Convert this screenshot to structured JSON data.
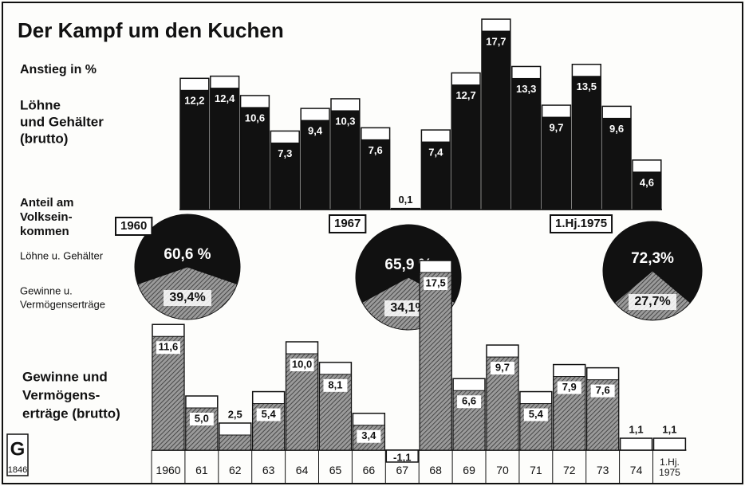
{
  "chart_data": [
    {
      "type": "bar",
      "title": "Der Kampf um den Kuchen",
      "subtitle": "Anstieg in %",
      "label_lines": [
        "Löhne",
        "und Gehälter",
        "(brutto)"
      ],
      "values": [
        12.2,
        12.4,
        10.6,
        7.3,
        9.4,
        10.3,
        7.6,
        0.1,
        7.4,
        12.7,
        17.7,
        13.3,
        9.7,
        13.5,
        9.6,
        4.6
      ],
      "value_labels": [
        "12,2",
        "12,4",
        "10,6",
        "7,3",
        "9,4",
        "10,3",
        "7,6",
        "0,1",
        "7,4",
        "12,7",
        "17,7",
        "13,3",
        "9,7",
        "13,5",
        "9,6",
        "4,6"
      ],
      "color": "#111111"
    },
    {
      "type": "pie",
      "label_lines": [
        "Anteil am",
        "Volksein-",
        "kommen"
      ],
      "legend": [
        {
          "name_lines": [
            "Löhne u. Gehälter"
          ],
          "color": "#111111"
        },
        {
          "name_lines": [
            "Gewinne u.",
            "Vermögenserträge"
          ],
          "color": "#8a8a8a"
        }
      ],
      "pies": [
        {
          "title": "1960",
          "values": [
            60.6,
            39.4
          ],
          "value_labels": [
            "60,6 %",
            "39,4%"
          ]
        },
        {
          "title": "1967",
          "values": [
            65.9,
            34.1
          ],
          "value_labels": [
            "65,9 %",
            "34,1%"
          ]
        },
        {
          "title": "1.Hj.1975",
          "values": [
            72.3,
            27.7
          ],
          "value_labels": [
            "72,3%",
            "27,7%"
          ]
        }
      ]
    },
    {
      "type": "bar",
      "label_lines": [
        "Gewinne und",
        "Vermögens-",
        "erträge (brutto)"
      ],
      "categories": [
        "1960",
        "61",
        "62",
        "63",
        "64",
        "65",
        "66",
        "67",
        "68",
        "69",
        "70",
        "71",
        "72",
        "73",
        "74",
        "1.Hj. 1975"
      ],
      "values": [
        11.6,
        5.0,
        2.5,
        5.4,
        10.0,
        8.1,
        3.4,
        -1.1,
        17.5,
        6.6,
        9.7,
        5.4,
        7.9,
        7.6,
        1.1,
        1.1
      ],
      "value_labels": [
        "11,6",
        "5,0",
        "2,5",
        "5,4",
        "10,0",
        "8,1",
        "3,4",
        "-1,1",
        "17,5",
        "6,6",
        "9,7",
        "5,4",
        "7,9",
        "7,6",
        "1,1",
        "1,1"
      ],
      "color": "#8a8a8a"
    }
  ],
  "logo": {
    "letter": "G",
    "number": "1846"
  }
}
